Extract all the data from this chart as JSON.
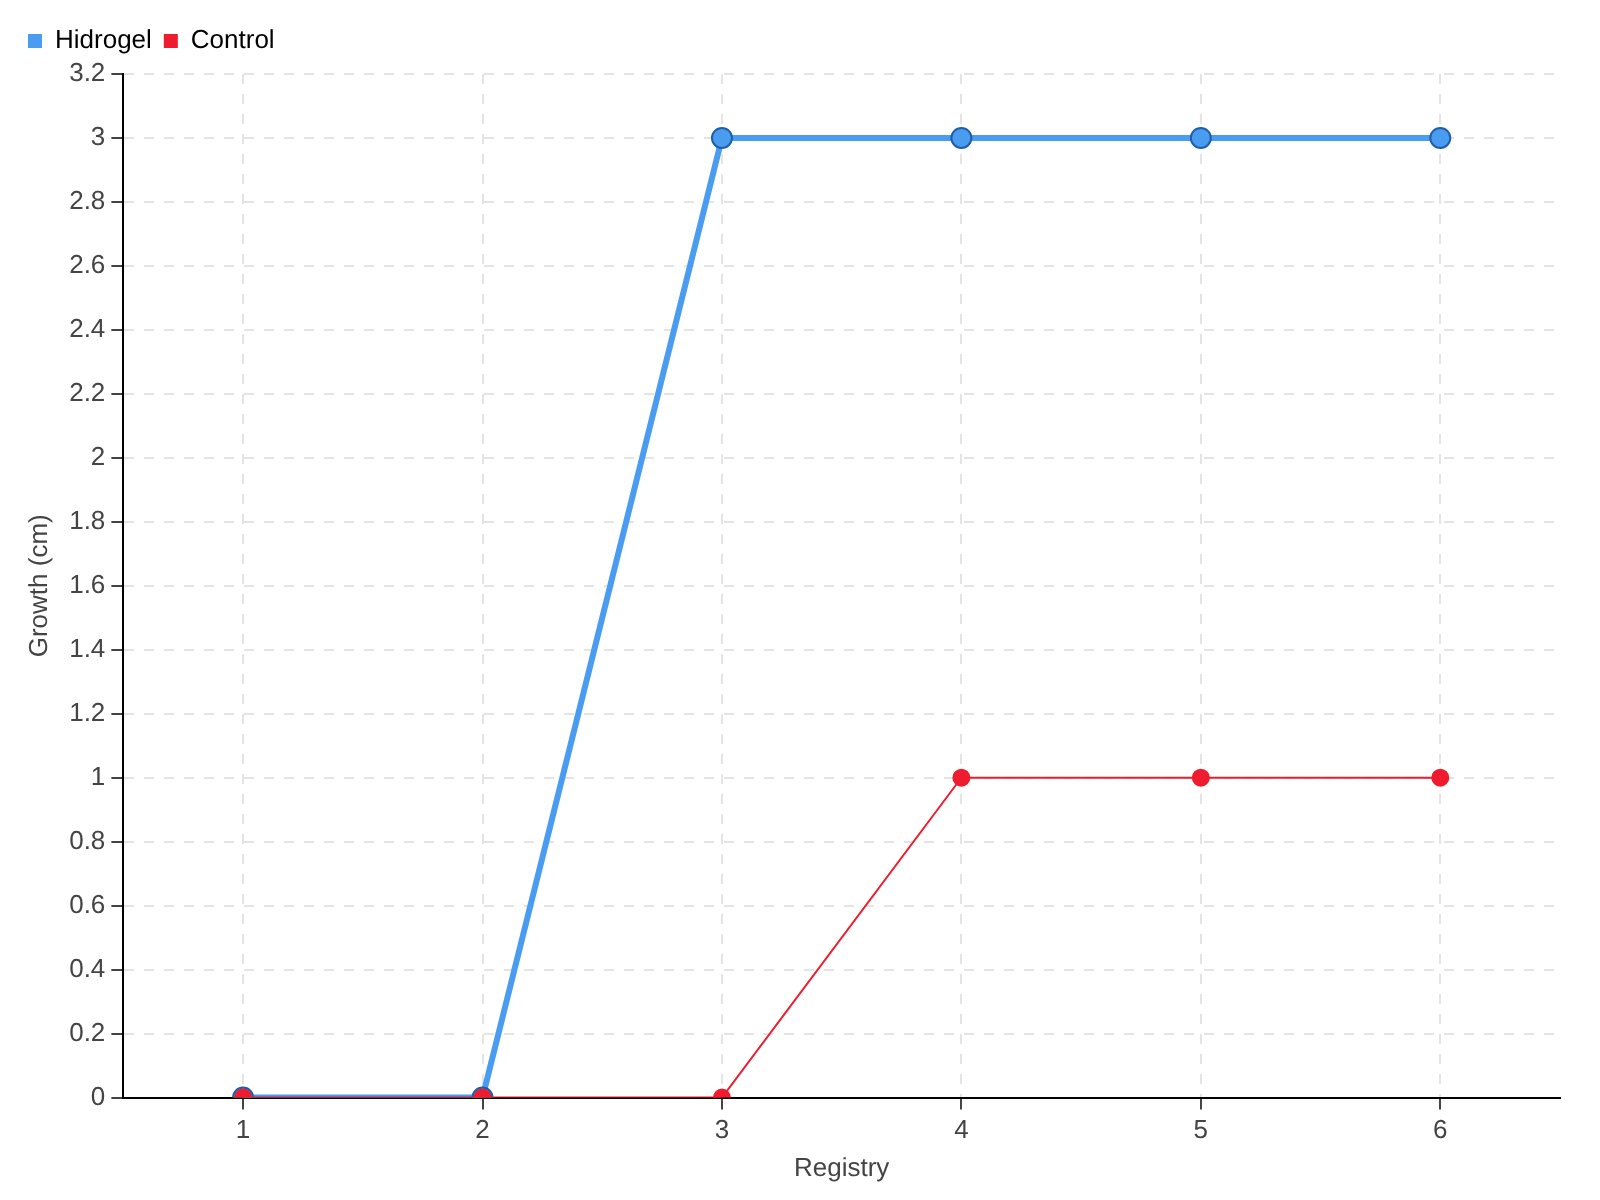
{
  "chart_data": {
    "type": "line",
    "xlabel": "Registry",
    "ylabel": "Growth (cm)",
    "categories": [
      "1",
      "2",
      "3",
      "4",
      "5",
      "6"
    ],
    "series": [
      {
        "name": "Hidrogel",
        "color": "#4a9cf0",
        "values": [
          0,
          0,
          3,
          3,
          3,
          3
        ]
      },
      {
        "name": "Control",
        "color": "#ee1c2e",
        "values": [
          0,
          0,
          0,
          1,
          1,
          1
        ]
      }
    ],
    "ylim": [
      0,
      3.2
    ],
    "yticks": [
      0,
      0.2,
      0.4,
      0.6,
      0.8,
      1,
      1.2,
      1.4,
      1.6,
      1.8,
      2,
      2.2,
      2.4,
      2.6,
      2.8,
      3,
      3.2
    ],
    "grid": true,
    "legend": "top left",
    "marker": "circle",
    "line_style": "solid"
  }
}
